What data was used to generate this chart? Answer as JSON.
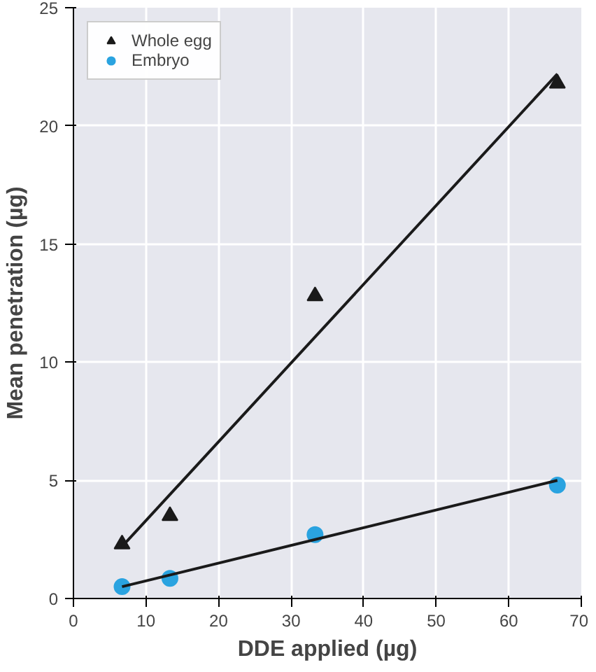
{
  "chart_data": {
    "type": "scatter",
    "xlabel": "DDE applied (µg)",
    "ylabel": "Mean penetration (µg)",
    "xlim": [
      0,
      70
    ],
    "ylim": [
      0,
      25
    ],
    "xticks": [
      0,
      10,
      20,
      30,
      40,
      50,
      60,
      70
    ],
    "yticks": [
      0,
      5,
      10,
      15,
      20,
      25
    ],
    "grid": true,
    "legend": "top left",
    "series": [
      {
        "name": "Whole egg",
        "color": "#1a1a1a",
        "marker": "triangle",
        "x": [
          6.7,
          13.3,
          33.3,
          66.7
        ],
        "values": [
          2.3,
          3.5,
          12.8,
          21.8
        ]
      },
      {
        "name": "Embryo",
        "color": "#2aa3e0",
        "marker": "circle",
        "x": [
          6.7,
          13.3,
          33.3,
          66.7
        ],
        "values": [
          0.5,
          0.85,
          2.7,
          4.8
        ]
      },
      {
        "type": "line",
        "color": "#1a1a1a",
        "x": [
          6.7,
          66.7
        ],
        "values": [
          2.2,
          22.2
        ]
      },
      {
        "type": "line",
        "color": "#1a1a1a",
        "x": [
          6.7,
          66.7
        ],
        "values": [
          0.5,
          5.0
        ]
      }
    ]
  }
}
